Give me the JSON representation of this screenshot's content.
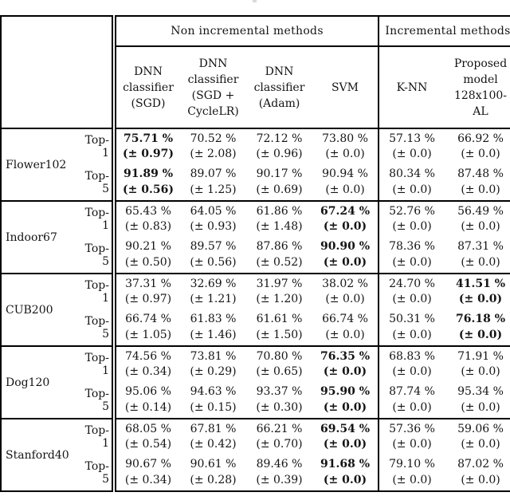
{
  "table": {
    "border_color": "#000000",
    "background": "#ffffff",
    "group_headers": [
      {
        "label": "Non incremental methods",
        "span": 4
      },
      {
        "label": "Incremental methods",
        "span": 2
      }
    ],
    "column_headers": [
      {
        "label": "DNN\nclassifier\n(SGD)"
      },
      {
        "label": "DNN\nclassifier\n(SGD +\nCycleLR)"
      },
      {
        "label": "DNN\nclassifier\n(Adam)"
      },
      {
        "label": "SVM"
      },
      {
        "label": "K-NN"
      },
      {
        "label": "Proposed\nmodel\n128x100-\nAL"
      }
    ],
    "datasets": [
      {
        "name": "Flower102",
        "rows": [
          {
            "metric": "Top-1",
            "cells": [
              {
                "value": "75.71 %",
                "std": "(± 0.97)",
                "bold": true
              },
              {
                "value": "70.52 %",
                "std": "(± 2.08)",
                "bold": false
              },
              {
                "value": "72.12 %",
                "std": "(± 0.96)",
                "bold": false
              },
              {
                "value": "73.80 %",
                "std": "(± 0.0)",
                "bold": false
              },
              {
                "value": "57.13 %",
                "std": "(± 0.0)",
                "bold": false
              },
              {
                "value": "66.92 %",
                "std": "(± 0.0)",
                "bold": false
              }
            ]
          },
          {
            "metric": "Top-5",
            "cells": [
              {
                "value": "91.89 %",
                "std": "(± 0.56)",
                "bold": true
              },
              {
                "value": "89.07 %",
                "std": "(± 1.25)",
                "bold": false
              },
              {
                "value": "90.17 %",
                "std": "(± 0.69)",
                "bold": false
              },
              {
                "value": "90.94 %",
                "std": "(± 0.0)",
                "bold": false
              },
              {
                "value": "80.34 %",
                "std": "(± 0.0)",
                "bold": false
              },
              {
                "value": "87.48 %",
                "std": "(± 0.0)",
                "bold": false
              }
            ]
          }
        ]
      },
      {
        "name": "Indoor67",
        "rows": [
          {
            "metric": "Top-1",
            "cells": [
              {
                "value": "65.43 %",
                "std": "(± 0.83)",
                "bold": false
              },
              {
                "value": "64.05 %",
                "std": "(± 0.93)",
                "bold": false
              },
              {
                "value": "61.86 %",
                "std": "(± 1.48)",
                "bold": false
              },
              {
                "value": "67.24 %",
                "std": "(± 0.0)",
                "bold": true
              },
              {
                "value": "52.76 %",
                "std": "(± 0.0)",
                "bold": false
              },
              {
                "value": "56.49 %",
                "std": "(± 0.0)",
                "bold": false
              }
            ]
          },
          {
            "metric": "Top-5",
            "cells": [
              {
                "value": "90.21 %",
                "std": "(± 0.50)",
                "bold": false
              },
              {
                "value": "89.57 %",
                "std": "(± 0.56)",
                "bold": false
              },
              {
                "value": "87.86 %",
                "std": "(± 0.52)",
                "bold": false
              },
              {
                "value": "90.90 %",
                "std": "(± 0.0)",
                "bold": true
              },
              {
                "value": "78.36 %",
                "std": "(± 0.0)",
                "bold": false
              },
              {
                "value": "87.31 %",
                "std": "(± 0.0)",
                "bold": false
              }
            ]
          }
        ]
      },
      {
        "name": "CUB200",
        "rows": [
          {
            "metric": "Top-1",
            "cells": [
              {
                "value": "37.31 %",
                "std": "(± 0.97)",
                "bold": false
              },
              {
                "value": "32.69 %",
                "std": "(± 1.21)",
                "bold": false
              },
              {
                "value": "31.97 %",
                "std": "(± 1.20)",
                "bold": false
              },
              {
                "value": "38.02 %",
                "std": "(± 0.0)",
                "bold": false
              },
              {
                "value": "24.70 %",
                "std": "(± 0.0)",
                "bold": false
              },
              {
                "value": "41.51 %",
                "std": "(± 0.0)",
                "bold": true
              }
            ]
          },
          {
            "metric": "Top-5",
            "cells": [
              {
                "value": "66.74 %",
                "std": "(± 1.05)",
                "bold": false
              },
              {
                "value": "61.83 %",
                "std": "(± 1.46)",
                "bold": false
              },
              {
                "value": "61.61 %",
                "std": "(± 1.50)",
                "bold": false
              },
              {
                "value": "66.74 %",
                "std": "(± 0.0)",
                "bold": false
              },
              {
                "value": "50.31 %",
                "std": "(± 0.0)",
                "bold": false
              },
              {
                "value": "76.18 %",
                "std": "(± 0.0)",
                "bold": true
              }
            ]
          }
        ]
      },
      {
        "name": "Dog120",
        "rows": [
          {
            "metric": "Top-1",
            "cells": [
              {
                "value": "74.56 %",
                "std": "(± 0.34)",
                "bold": false
              },
              {
                "value": "73.81 %",
                "std": "(± 0.29)",
                "bold": false
              },
              {
                "value": "70.80 %",
                "std": "(± 0.65)",
                "bold": false
              },
              {
                "value": "76.35 %",
                "std": "(± 0.0)",
                "bold": true
              },
              {
                "value": "68.83 %",
                "std": "(± 0.0)",
                "bold": false
              },
              {
                "value": "71.91 %",
                "std": "(± 0.0)",
                "bold": false
              }
            ]
          },
          {
            "metric": "Top-5",
            "cells": [
              {
                "value": "95.06 %",
                "std": "(± 0.14)",
                "bold": false
              },
              {
                "value": "94.63 %",
                "std": "(± 0.15)",
                "bold": false
              },
              {
                "value": "93.37 %",
                "std": "(± 0.30)",
                "bold": false
              },
              {
                "value": "95.90 %",
                "std": "(± 0.0)",
                "bold": true
              },
              {
                "value": "87.74 %",
                "std": "(± 0.0)",
                "bold": false
              },
              {
                "value": "95.34 %",
                "std": "(± 0.0)",
                "bold": false
              }
            ]
          }
        ]
      },
      {
        "name": "Stanford40",
        "rows": [
          {
            "metric": "Top-1",
            "cells": [
              {
                "value": "68.05 %",
                "std": "(± 0.54)",
                "bold": false
              },
              {
                "value": "67.81 %",
                "std": "(± 0.42)",
                "bold": false
              },
              {
                "value": "66.21 %",
                "std": "(± 0.70)",
                "bold": false
              },
              {
                "value": "69.54 %",
                "std": "(± 0.0)",
                "bold": true
              },
              {
                "value": "57.36 %",
                "std": "(± 0.0)",
                "bold": false
              },
              {
                "value": "59.06 %",
                "std": "(± 0.0)",
                "bold": false
              }
            ]
          },
          {
            "metric": "Top-5",
            "cells": [
              {
                "value": "90.67 %",
                "std": "(± 0.34)",
                "bold": false
              },
              {
                "value": "90.61 %",
                "std": "(± 0.28)",
                "bold": false
              },
              {
                "value": "89.46 %",
                "std": "(± 0.39)",
                "bold": false
              },
              {
                "value": "91.68 %",
                "std": "(± 0.0)",
                "bold": true
              },
              {
                "value": "79.10 %",
                "std": "(± 0.0)",
                "bold": false
              },
              {
                "value": "87.02 %",
                "std": "(± 0.0)",
                "bold": false
              }
            ]
          }
        ]
      }
    ]
  }
}
